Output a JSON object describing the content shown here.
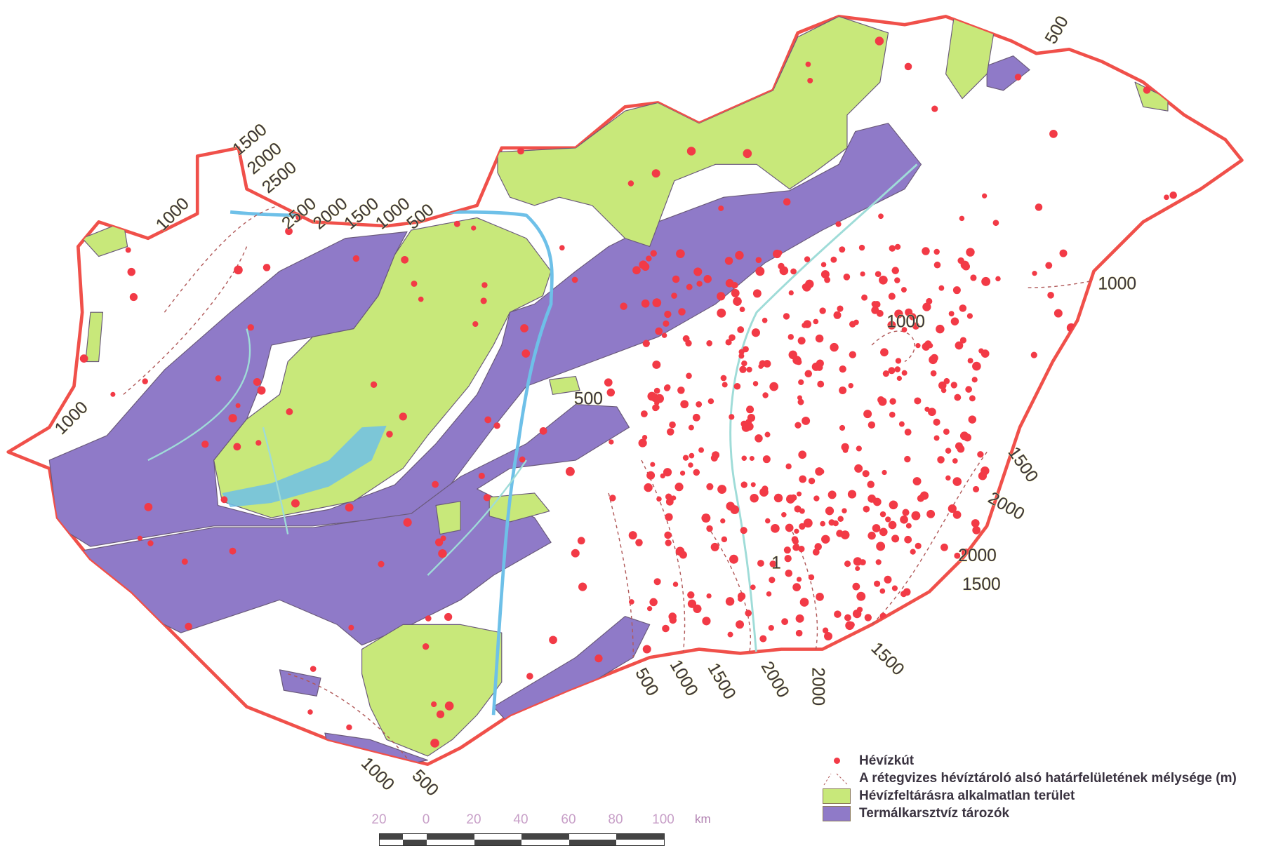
{
  "colors": {
    "border": "#f0504a",
    "green": "#c8e87a",
    "purple": "#8f7ac8",
    "water": "#6ec0e8",
    "river": "#9fdcd8",
    "contour": "#b05858",
    "well": "#f23a46"
  },
  "contour_labels": [
    "1500",
    "2000",
    "2500",
    "2500",
    "2000",
    "1500",
    "1000",
    "500",
    "1000",
    "1000",
    "500",
    "1000",
    "1000",
    "1500",
    "2000",
    "2000",
    "1500",
    "1500",
    "2000",
    "2000",
    "1500",
    "1000",
    "500",
    "1000",
    "500",
    "500",
    "1"
  ],
  "legend": {
    "items": [
      {
        "icon": "red-dot",
        "label": "Hévízkút"
      },
      {
        "icon": "dashed-line",
        "label": "A rétegvizes hévíztároló alsó határfelületének mélysége (m)"
      },
      {
        "icon": "green-swatch",
        "label": "Hévízfeltárásra alkalmatlan terület"
      },
      {
        "icon": "purple-swatch",
        "label": "Termálkarsztvíz tározók"
      }
    ]
  },
  "scale_bar": {
    "ticks": [
      "20",
      "0",
      "20",
      "40",
      "60",
      "80",
      "100"
    ],
    "unit": "km"
  }
}
